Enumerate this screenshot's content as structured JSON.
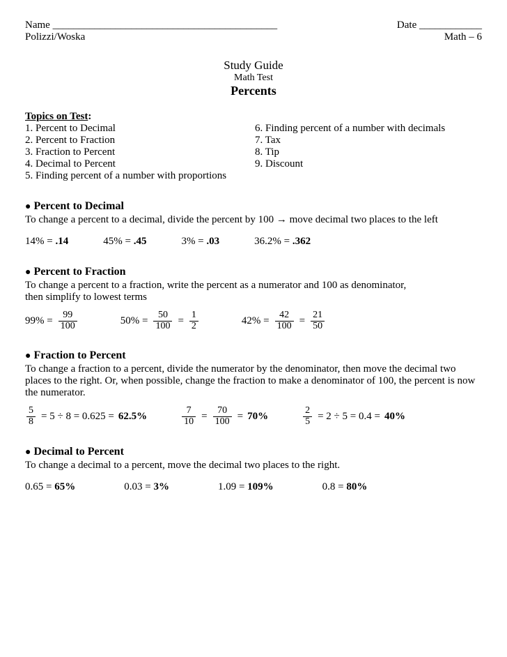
{
  "header": {
    "name_label": "Name ___________________________________________",
    "date_label": "Date ____________",
    "teachers": "Polizzi/Woska",
    "course": "Math – 6"
  },
  "title": {
    "line1": "Study Guide",
    "line2": "Math Test",
    "line3": "Percents"
  },
  "topics": {
    "header": "Topics on Test",
    "left": [
      "1. Percent to Decimal",
      "2. Percent to Fraction",
      "3. Fraction to Percent",
      "4. Decimal to Percent",
      "5. Finding percent of a number with proportions"
    ],
    "right": [
      "6. Finding percent of a number with decimals",
      "7. Tax",
      "8. Tip",
      "9. Discount"
    ]
  },
  "s1": {
    "head": "Percent to Decimal",
    "instr": "To change a percent to a decimal, divide the percent by 100 → move decimal two places to the left",
    "ex1_l": "14%  =  ",
    "ex1_r": ".14",
    "ex2_l": "45%  =  ",
    "ex2_r": ".45",
    "ex3_l": "3%  =  ",
    "ex3_r": ".03",
    "ex4_l": "36.2%  =  ",
    "ex4_r": ".362"
  },
  "s2": {
    "head": "Percent to Fraction",
    "instr": " To change a percent to a fraction, write the percent as a numerator and 100 as denominator,\n then simplify to lowest terms",
    "e1": {
      "pre": "99% = ",
      "n": "99",
      "d": "100"
    },
    "e2": {
      "pre": "50% = ",
      "n1": "50",
      "d1": "100",
      "eq": " = ",
      "n2": "1",
      "d2": "2"
    },
    "e3": {
      "pre": "42% = ",
      "n1": "42",
      "d1": "100",
      "eq": " = ",
      "n2": "21",
      "d2": "50"
    }
  },
  "s3": {
    "head": "Fraction to Percent",
    "instr": "To change a fraction to a percent, divide the numerator by the denominator, then move the decimal two places to the right.  Or, when possible, change the fraction to make a denominator of 100, the percent is now the numerator.",
    "e1": {
      "n": "5",
      "d": "8",
      "mid": " =   5 ÷ 8 = 0.625 = ",
      "res": "62.5%"
    },
    "e2": {
      "n1": "7",
      "d1": "10",
      "eq": " = ",
      "n2": "70",
      "d2": "100",
      "eq2": "  = ",
      "res": "70%"
    },
    "e3": {
      "n": "2",
      "d": "5",
      "mid": " =   2 ÷ 5 =  0.4 = ",
      "res": "40%"
    }
  },
  "s4": {
    "head": "Decimal to Percent",
    "instr": "To change a decimal to a percent, move the decimal two places to the right.",
    "ex1_l": "0.65  =  ",
    "ex1_r": "65%",
    "ex2_l": "0.03  = ",
    "ex2_r": "3%",
    "ex3_l": "1.09  = ",
    "ex3_r": "109%",
    "ex4_l": "0.8 = ",
    "ex4_r": "80%"
  }
}
